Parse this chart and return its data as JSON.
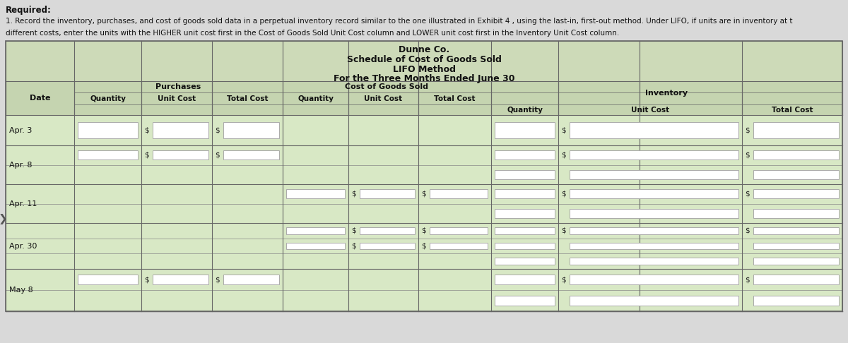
{
  "title_company": "Dunne Co.",
  "title_schedule": "Schedule of Cost of Goods Sold",
  "title_method": "LIFO Method",
  "title_period": "For the Three Months Ended June 30",
  "req_line1": "Required:",
  "req_line2": "1. Record the inventory, purchases, and cost of goods sold data in a perpetual inventory record similar to the one illustrated in Exhibit 4 , using the last-in, first-out method. Under LIFO, if units are in inventory at t",
  "req_line3": "different costs, enter the units with the HIGHER unit cost first in the Cost of Goods Sold Unit Cost column and LOWER unit cost first in the Inventory Unit Cost column.",
  "dates": [
    "Apr. 3",
    "Apr. 8",
    "Apr. 11",
    "Apr. 30",
    "May 8"
  ],
  "table_bg": "#cddab8",
  "row_bg_light": "#d8e8c5",
  "row_bg_alt": "#cddab8",
  "header_bg": "#c5d4b0",
  "white_box": "#ffffff",
  "text_color": "#111111",
  "page_bg": "#d9d9d9",
  "border_dark": "#666666",
  "border_light": "#999999"
}
